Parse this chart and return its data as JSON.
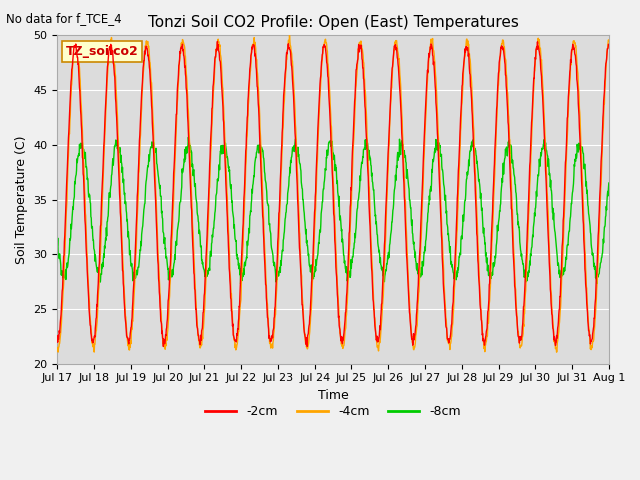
{
  "title": "Tonzi Soil CO2 Profile: Open (East) Temperatures",
  "no_data_text": "No data for f_TCE_4",
  "ylabel": "Soil Temperature (C)",
  "xlabel": "Time",
  "ylim": [
    20,
    50
  ],
  "xlim": [
    0,
    15.5
  ],
  "legend_label": "TZ_soilco2",
  "series": [
    {
      "label": "-2cm",
      "color": "#FF0000"
    },
    {
      "label": "-4cm",
      "color": "#FFA500"
    },
    {
      "label": "-8cm",
      "color": "#00CC00"
    }
  ],
  "x_tick_labels": [
    "Jul 17",
    "Jul 18",
    "Jul 19",
    "Jul 20",
    "Jul 21",
    "Jul 22",
    "Jul 23",
    "Jul 24",
    "Jul 25",
    "Jul 26",
    "Jul 27",
    "Jul 28",
    "Jul 29",
    "Jul 30",
    "Jul 31",
    "Aug 1"
  ],
  "yticks": [
    20,
    25,
    30,
    35,
    40,
    45,
    50
  ],
  "bg_color": "#DCDCDC",
  "fig_color": "#F0F0F0",
  "title_fontsize": 11,
  "axis_fontsize": 9,
  "tick_fontsize": 8
}
